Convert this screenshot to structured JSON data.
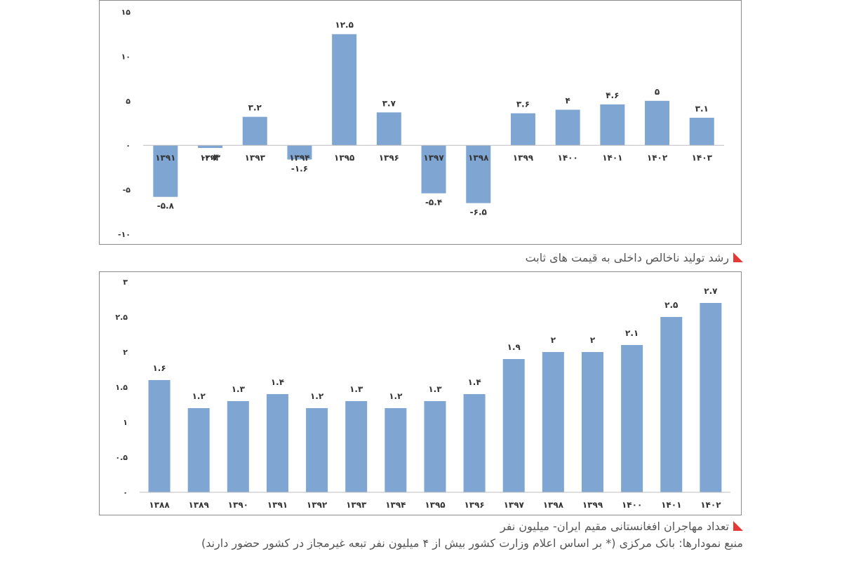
{
  "charts": [
    {
      "caption": "رشد تولید ناخالص داخلی به قیمت های ثابت"
    },
    {
      "caption": "تعداد مهاجران افغانستانی مقیم ایران- میلیون نفر"
    }
  ],
  "source_note": "منبع نمودارها: بانک مرکزی (* بر اساس اعلام وزارت کشور بیش از ۴ میلیون نفر تبعه غیرمجاز در کشور حضور دارند)",
  "colors": {
    "bar": "#7fa6d3",
    "accent": "#e53935",
    "axis": "#bdbdbd"
  },
  "chart_data": [
    {
      "type": "bar",
      "title": "",
      "categories": [
        "۱۳۹۱",
        "۱۳۹۲",
        "۱۳۹۳",
        "۱۳۹۴",
        "۱۳۹۵",
        "۱۳۹۶",
        "۱۳۹۷",
        "۱۳۹۸",
        "۱۳۹۹",
        "۱۴۰۰",
        "۱۴۰۱",
        "۱۴۰۲",
        "۱۴۰۳"
      ],
      "values": [
        -5.8,
        -0.3,
        3.2,
        -1.6,
        12.5,
        3.7,
        -5.4,
        -6.5,
        3.6,
        4,
        4.6,
        5,
        3.1
      ],
      "value_labels": [
        "-۵.۸",
        "-۰.۳",
        "۳.۲",
        "-۱.۶",
        "۱۲.۵",
        "۳.۷",
        "-۵.۴",
        "-۶.۵",
        "۳.۶",
        "۴",
        "۴.۶",
        "۵",
        "۳.۱"
      ],
      "yticks": [
        15,
        10,
        5,
        0,
        -5,
        -10
      ],
      "ytick_labels": [
        "۱۵",
        "۱۰",
        "۵",
        "۰",
        "-۵",
        "-۱۰"
      ],
      "ylim": [
        -10,
        15
      ],
      "grid": false,
      "legend": "none"
    },
    {
      "type": "bar",
      "title": "",
      "categories": [
        "۱۳۸۸",
        "۱۳۸۹",
        "۱۳۹۰",
        "۱۳۹۱",
        "۱۳۹۲",
        "۱۳۹۳",
        "۱۳۹۴",
        "۱۳۹۵",
        "۱۳۹۶",
        "۱۳۹۷",
        "۱۳۹۸",
        "۱۳۹۹",
        "۱۴۰۰",
        "۱۴۰۱",
        "۱۴۰۲"
      ],
      "values": [
        1.6,
        1.2,
        1.3,
        1.4,
        1.2,
        1.3,
        1.2,
        1.3,
        1.4,
        1.9,
        2,
        2,
        2.1,
        2.5,
        2.7
      ],
      "value_labels": [
        "۱.۶",
        "۱.۲",
        "۱.۳",
        "۱.۴",
        "۱.۲",
        "۱.۳",
        "۱.۲",
        "۱.۳",
        "۱.۴",
        "۱.۹",
        "۲",
        "۲",
        "۲.۱",
        "۲.۵",
        "۲.۷"
      ],
      "yticks": [
        3,
        2.5,
        2,
        1.5,
        1,
        0.5,
        0
      ],
      "ytick_labels": [
        "۳",
        "۲.۵",
        "۲",
        "۱.۵",
        "۱",
        "۰.۵",
        "۰"
      ],
      "ylim": [
        0,
        3
      ],
      "grid": false,
      "legend": "none"
    }
  ]
}
